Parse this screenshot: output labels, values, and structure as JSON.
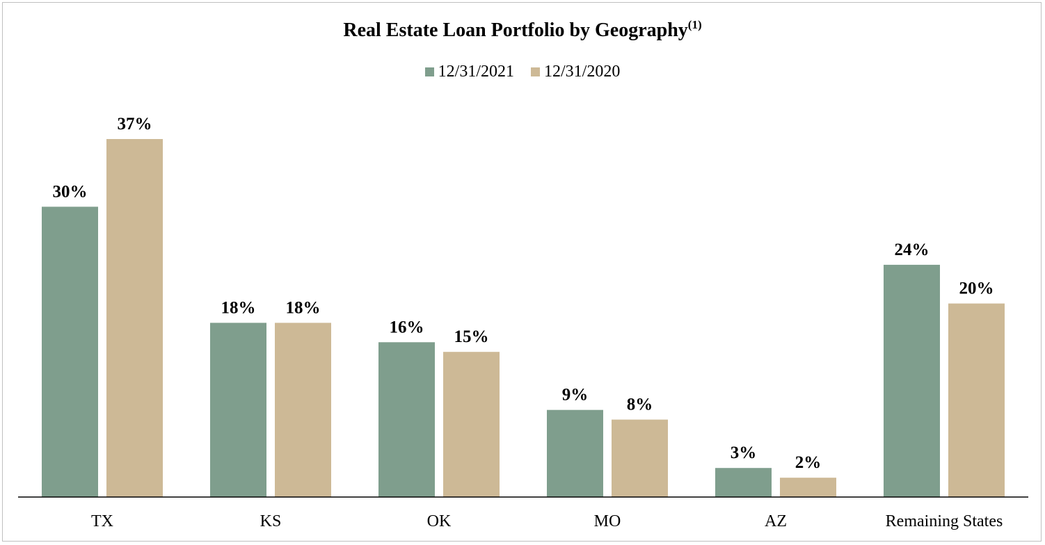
{
  "chart_data": {
    "type": "bar",
    "title": "Real Estate Loan Portfolio by Geography",
    "title_superscript": "(1)",
    "categories": [
      "TX",
      "KS",
      "OK",
      "MO",
      "AZ",
      "Remaining States"
    ],
    "series": [
      {
        "name": "12/31/2021",
        "color": "#7f9e8d",
        "values": [
          30,
          18,
          16,
          9,
          3,
          24
        ],
        "labels": [
          "30%",
          "18%",
          "16%",
          "9%",
          "3%",
          "24%"
        ]
      },
      {
        "name": "12/31/2020",
        "color": "#cdb996",
        "values": [
          37,
          18,
          15,
          8,
          2,
          20
        ],
        "labels": [
          "37%",
          "18%",
          "15%",
          "8%",
          "2%",
          "20%"
        ]
      }
    ],
    "value_format": "%",
    "ylim": [
      0,
      40
    ],
    "grid": false,
    "legend_position": "top-center",
    "xlabel": "",
    "ylabel": ""
  }
}
